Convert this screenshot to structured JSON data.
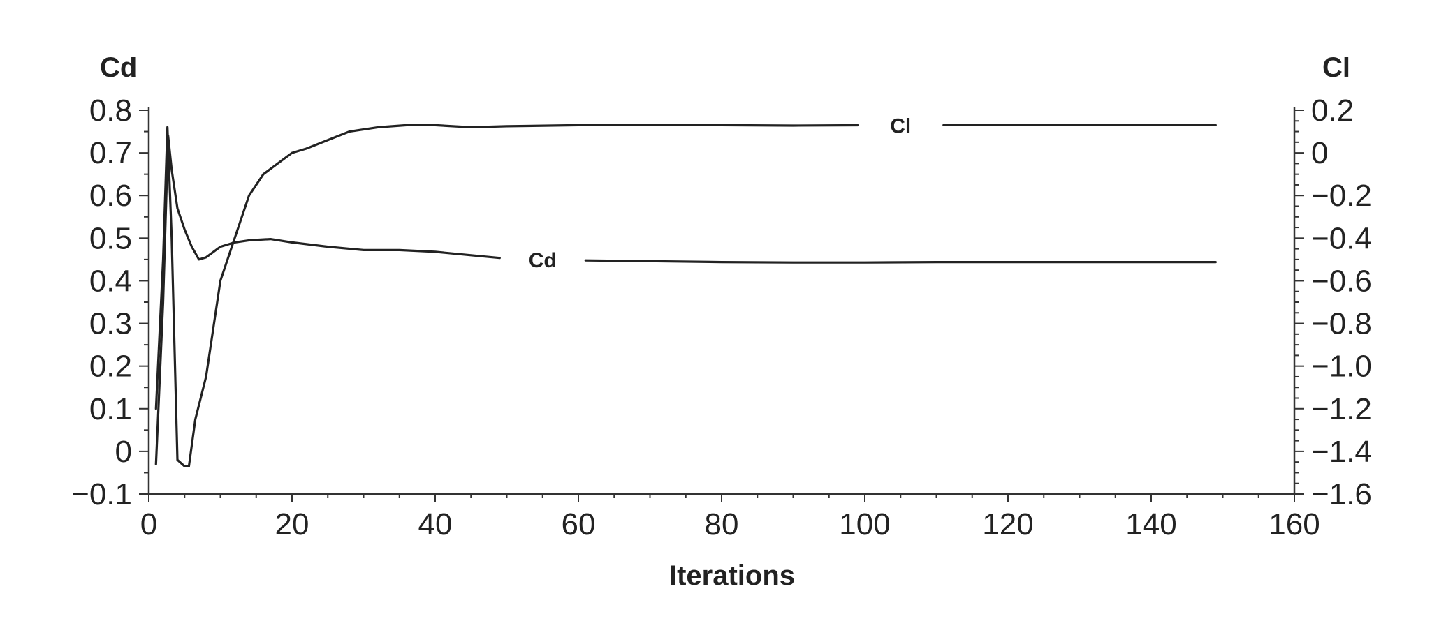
{
  "chart_data": {
    "type": "line",
    "xlabel": "Iterations",
    "ylabel_left": "Cd",
    "ylabel_right": "Cl",
    "xlim": [
      0,
      160
    ],
    "ylim_left": [
      -0.1,
      0.8
    ],
    "ylim_right": [
      -1.6,
      0.2
    ],
    "x_ticks": [
      0,
      20,
      40,
      60,
      80,
      100,
      120,
      140,
      160
    ],
    "y_left_ticks": [
      -0.1,
      0,
      0.1,
      0.2,
      0.3,
      0.4,
      0.5,
      0.6,
      0.7,
      0.8
    ],
    "y_left_tick_labels": [
      "−0.1",
      "0",
      "0.1",
      "0.2",
      "0.3",
      "0.4",
      "0.5",
      "0.6",
      "0.7",
      "0.8"
    ],
    "y_right_ticks": [
      -1.6,
      -1.4,
      -1.2,
      -1.0,
      -0.8,
      -0.6,
      -0.4,
      -0.2,
      0,
      0.2
    ],
    "y_right_tick_labels": [
      "−1.6",
      "−1.4",
      "−1.2",
      "−1.0",
      "−0.8",
      "−0.6",
      "−0.4",
      "−0.2",
      "0",
      "0.2"
    ],
    "grid": false,
    "series": [
      {
        "name": "Cd",
        "axis": "left",
        "label_at_x": 55,
        "points": [
          [
            1,
            -0.03
          ],
          [
            2,
            0.35
          ],
          [
            2.7,
            0.74
          ],
          [
            3.2,
            0.66
          ],
          [
            4,
            0.57
          ],
          [
            5,
            0.52
          ],
          [
            6,
            0.48
          ],
          [
            7,
            0.45
          ],
          [
            8,
            0.455
          ],
          [
            10,
            0.48
          ],
          [
            12,
            0.49
          ],
          [
            14,
            0.495
          ],
          [
            17,
            0.498
          ],
          [
            20,
            0.49
          ],
          [
            25,
            0.48
          ],
          [
            30,
            0.472
          ],
          [
            35,
            0.472
          ],
          [
            40,
            0.468
          ],
          [
            45,
            0.46
          ],
          [
            50,
            0.452
          ],
          [
            60,
            0.448
          ],
          [
            70,
            0.446
          ],
          [
            80,
            0.444
          ],
          [
            90,
            0.443
          ],
          [
            100,
            0.443
          ],
          [
            110,
            0.444
          ],
          [
            120,
            0.444
          ],
          [
            130,
            0.444
          ],
          [
            140,
            0.444
          ],
          [
            149,
            0.444
          ]
        ]
      },
      {
        "name": "Cl",
        "axis": "right",
        "label_at_x": 105,
        "points": [
          [
            1,
            -1.2
          ],
          [
            2,
            -0.5
          ],
          [
            2.6,
            0.12
          ],
          [
            3.2,
            -0.4
          ],
          [
            4,
            -1.44
          ],
          [
            5,
            -1.47
          ],
          [
            5.6,
            -1.47
          ],
          [
            6.5,
            -1.25
          ],
          [
            8,
            -1.05
          ],
          [
            10,
            -0.6
          ],
          [
            12,
            -0.4
          ],
          [
            14,
            -0.2
          ],
          [
            16,
            -0.1
          ],
          [
            18,
            -0.05
          ],
          [
            20,
            0.0
          ],
          [
            22,
            0.02
          ],
          [
            25,
            0.06
          ],
          [
            28,
            0.1
          ],
          [
            32,
            0.12
          ],
          [
            36,
            0.13
          ],
          [
            40,
            0.13
          ],
          [
            45,
            0.12
          ],
          [
            50,
            0.125
          ],
          [
            60,
            0.13
          ],
          [
            80,
            0.13
          ],
          [
            90,
            0.128
          ],
          [
            100,
            0.13
          ],
          [
            120,
            0.13
          ],
          [
            140,
            0.13
          ],
          [
            149,
            0.13
          ]
        ]
      }
    ]
  }
}
